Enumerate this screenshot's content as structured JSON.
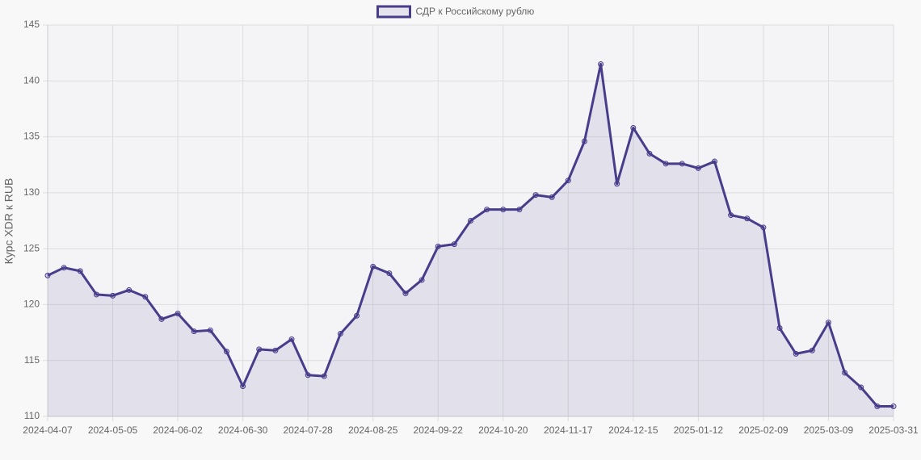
{
  "chart_data": {
    "type": "line",
    "y_label": "Курс XDR к RUB",
    "categories": [
      "2024-04-07",
      null,
      null,
      null,
      "2024-05-05",
      null,
      null,
      null,
      "2024-06-02",
      null,
      null,
      null,
      "2024-06-30",
      null,
      null,
      null,
      "2024-07-28",
      null,
      null,
      null,
      "2024-08-25",
      null,
      null,
      null,
      "2024-09-22",
      null,
      null,
      null,
      "2024-10-20",
      null,
      null,
      null,
      "2024-11-17",
      null,
      null,
      null,
      "2024-12-15",
      null,
      null,
      null,
      "2025-01-12",
      null,
      null,
      null,
      "2025-02-09",
      null,
      null,
      null,
      "2025-03-09",
      null,
      null,
      null,
      "2025-03-31"
    ],
    "series": [
      {
        "name": "СДР к Российскому рублю",
        "color": "#483d8b",
        "values": [
          122.6,
          123.3,
          123.0,
          120.9,
          120.8,
          121.3,
          120.7,
          118.7,
          119.2,
          117.6,
          117.7,
          115.8,
          112.7,
          116.0,
          115.9,
          116.9,
          113.7,
          113.6,
          117.4,
          119.0,
          123.4,
          122.8,
          121.0,
          122.2,
          125.2,
          125.4,
          127.5,
          128.5,
          128.5,
          128.5,
          129.8,
          129.6,
          131.1,
          134.6,
          141.5,
          130.8,
          135.8,
          133.5,
          132.6,
          132.6,
          132.2,
          132.8,
          128.0,
          127.7,
          126.9,
          117.9,
          115.6,
          115.9,
          118.4,
          113.9,
          112.6,
          110.9,
          110.9
        ]
      }
    ],
    "ylim": [
      110,
      145
    ],
    "yticks": [
      110,
      115,
      120,
      125,
      130,
      135,
      140,
      145
    ],
    "grid": true,
    "fill": true,
    "legend": "top"
  }
}
